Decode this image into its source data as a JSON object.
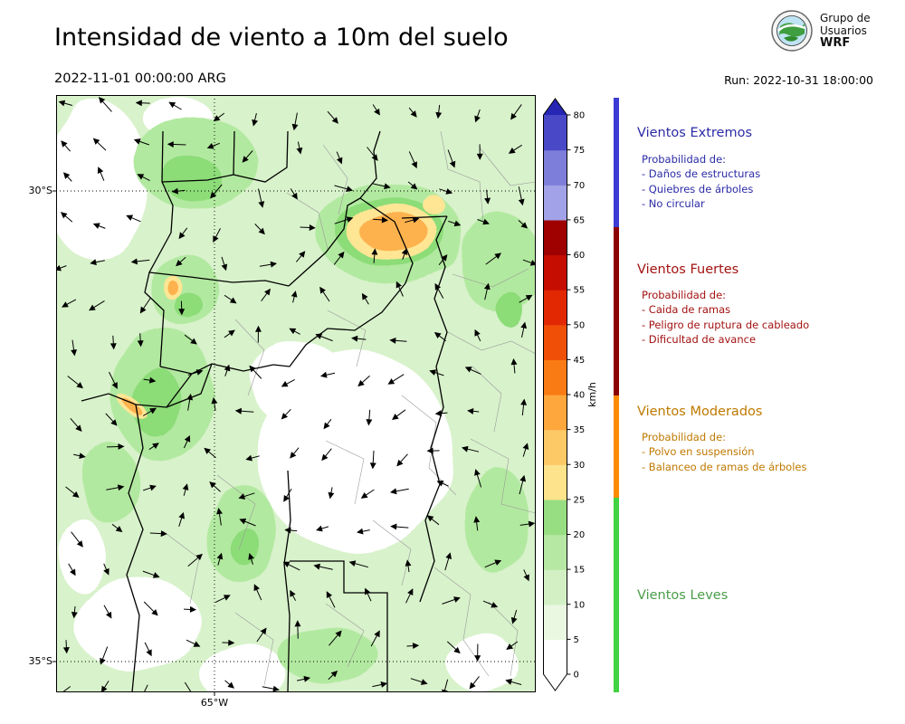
{
  "header": {
    "title": "Intensidad de viento a 10m del suelo",
    "valid_time": "2022-11-01 00:00:00 ARG",
    "run_label": "Run: 2022-10-31 18:00:00",
    "logo_lines": [
      "Grupo de",
      "Usuarios",
      "WRF"
    ]
  },
  "map": {
    "y_axis_labels": [
      "30°S",
      "35°S"
    ],
    "x_axis_labels": [
      "65°W"
    ]
  },
  "colorbar": {
    "unit": "km/h",
    "ticks": [
      0,
      5,
      10,
      15,
      20,
      25,
      30,
      35,
      40,
      45,
      50,
      55,
      60,
      65,
      70,
      75,
      80
    ],
    "segment_colors_bottom_to_top": [
      "#ffffff",
      "#eaf8e2",
      "#d3f0c5",
      "#b6e8a4",
      "#97dd81",
      "#fce38c",
      "#fdc967",
      "#fda73c",
      "#f97b14",
      "#f04f08",
      "#e22803",
      "#c60d01",
      "#9f0000",
      "#a2a2e8",
      "#7d7dda",
      "#4949c8"
    ],
    "over_color": "#2626b4",
    "under_color": "#ffffff"
  },
  "legend": {
    "sections": [
      {
        "title": "Vientos Extremos",
        "text_color": "#2b2ba6",
        "bar_color": "#3c3cd4",
        "probability_label": "Probabilidad de:",
        "items": [
          "- Daños de estructuras",
          "- Quiebres de árboles",
          "- No circular"
        ]
      },
      {
        "title": "Vientos Fuertes",
        "text_color": "#a31212",
        "bar_color": "#8b0000",
        "probability_label": "Probabilidad de:",
        "items": [
          "- Caida de ramas",
          "- Peligro de ruptura de cableado",
          "- Dificultad de avance"
        ]
      },
      {
        "title": "Vientos Moderados",
        "text_color": "#bf7900",
        "bar_color": "#ff8c00",
        "probability_label": "Probabilidad de:",
        "items": [
          "- Polvo en suspensión",
          "- Balanceo de ramas de árboles"
        ]
      },
      {
        "title": "Vientos Leves",
        "text_color": "#4a9d49",
        "bar_color": "#41d341",
        "probability_label": "",
        "items": []
      }
    ]
  },
  "map_palette": {
    "base_green": "#d8f2cb",
    "calm_white": "#ffffff",
    "mid_green": "#b2e9a0",
    "deep_green": "#8cdc78",
    "moderate_yellow": "#fee695",
    "moderate_orange": "#fdb24d",
    "boundary_black": "#000000",
    "boundary_gray": "#9a9a9a",
    "arrow_color": "#000000"
  }
}
